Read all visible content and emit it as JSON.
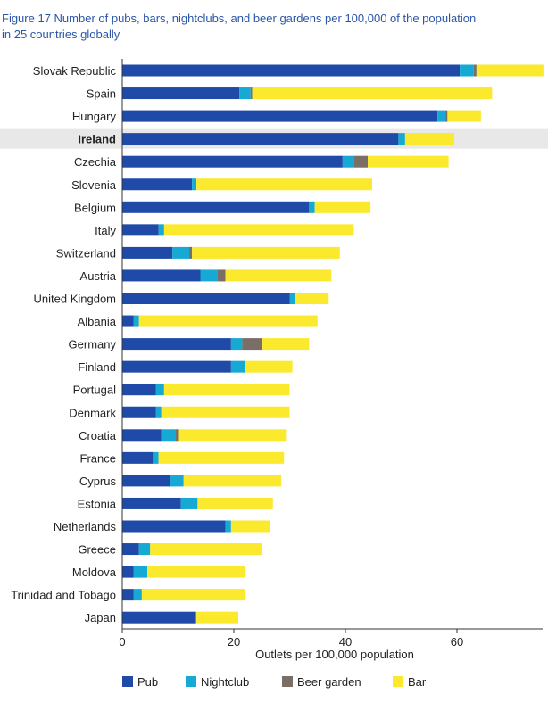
{
  "title_lines": [
    "Figure 17 Number of pubs, bars, nightclubs, and beer gardens per 100,000 of the population",
    "in 25 countries globally"
  ],
  "chart_data": {
    "type": "bar",
    "orientation": "horizontal",
    "stacked": true,
    "xlabel": "Outlets per 100,000 population",
    "ylabel": "",
    "xlim": [
      0,
      75
    ],
    "xticks": [
      0,
      20,
      40,
      60
    ],
    "grid": false,
    "legend_position": "bottom",
    "highlight_category": "Ireland",
    "colors": {
      "Pub": "#1f4aa8",
      "Nightclub": "#16a9d4",
      "Beer garden": "#7a6e66",
      "Bar": "#fbe92d",
      "highlight_band": "#e8e8e8"
    },
    "categories": [
      "Slovak Republic",
      "Spain",
      "Hungary",
      "Ireland",
      "Czechia",
      "Slovenia",
      "Belgium",
      "Italy",
      "Switzerland",
      "Austria",
      "United Kingdom",
      "Albania",
      "Germany",
      "Finland",
      "Portugal",
      "Denmark",
      "Croatia",
      "France",
      "Cyprus",
      "Estonia",
      "Netherlands",
      "Greece",
      "Moldova",
      "Trinidad and Tobago",
      "Japan"
    ],
    "series": [
      {
        "name": "Pub",
        "values": [
          60.5,
          21.0,
          56.5,
          49.5,
          39.5,
          12.5,
          33.5,
          6.5,
          9.0,
          14.0,
          30.0,
          2.0,
          19.5,
          19.5,
          6.0,
          6.0,
          7.0,
          5.5,
          8.5,
          10.5,
          18.5,
          3.0,
          2.0,
          2.0,
          13.0
        ]
      },
      {
        "name": "Nightclub",
        "values": [
          2.5,
          2.0,
          1.5,
          1.2,
          2.0,
          0.8,
          1.0,
          1.0,
          3.0,
          3.0,
          1.0,
          1.0,
          2.0,
          2.5,
          1.5,
          1.0,
          2.5,
          1.0,
          2.5,
          3.0,
          1.0,
          2.0,
          2.5,
          1.5,
          0.3
        ]
      },
      {
        "name": "Beer garden",
        "values": [
          0.5,
          0.3,
          0.3,
          0,
          2.5,
          0,
          0,
          0,
          0.5,
          1.5,
          0,
          0,
          3.5,
          0,
          0,
          0,
          0.5,
          0,
          0,
          0,
          0,
          0,
          0,
          0,
          0
        ]
      },
      {
        "name": "Bar",
        "values": [
          12.0,
          43.0,
          6.0,
          8.8,
          14.5,
          31.5,
          10.0,
          34.0,
          26.5,
          19.0,
          6.0,
          32.0,
          8.5,
          8.5,
          22.5,
          23.0,
          19.5,
          22.5,
          17.5,
          13.5,
          7.0,
          20.0,
          17.5,
          18.5,
          7.5
        ]
      }
    ]
  }
}
